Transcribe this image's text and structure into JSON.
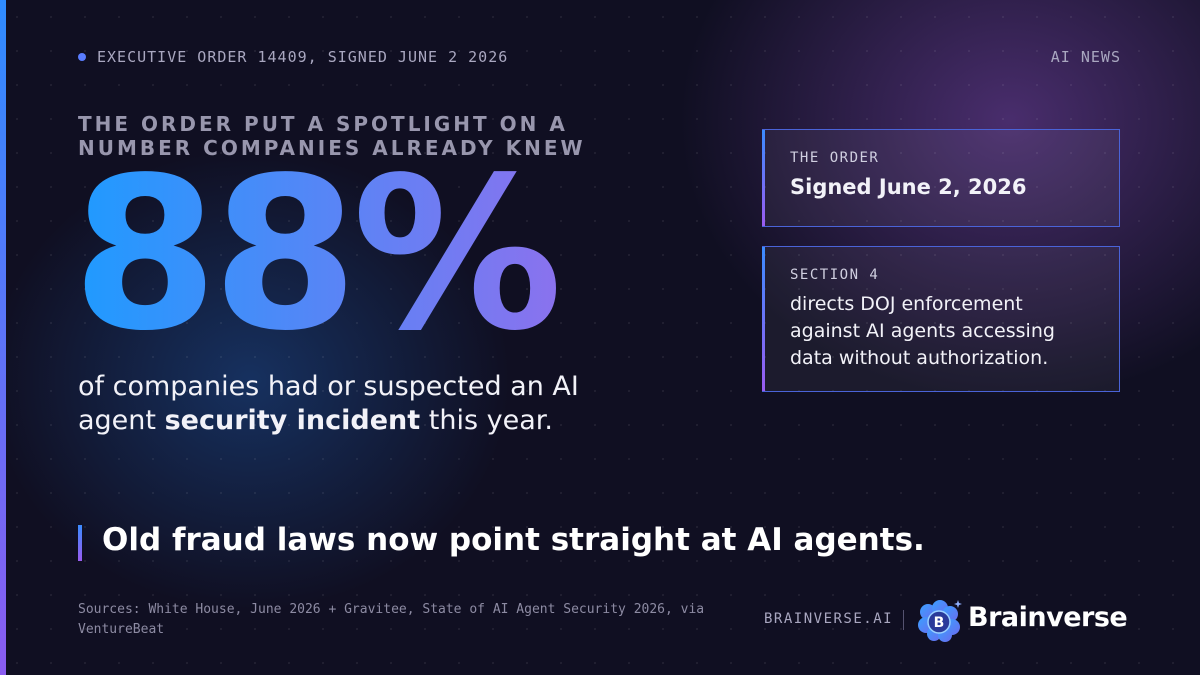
{
  "header": {
    "kicker": "EXECUTIVE ORDER 14409, SIGNED JUNE 2 2026",
    "tag": "AI NEWS"
  },
  "headline": {
    "lead": "THE ORDER PUT A SPOTLIGHT ON A NUMBER COMPANIES ALREADY KNEW"
  },
  "stat": {
    "value": "88%",
    "caption_before": "of companies had or suspected an AI agent ",
    "caption_bold": "security incident",
    "caption_after": " this year."
  },
  "cards": [
    {
      "label": "THE ORDER",
      "text": "Signed June 2, 2026"
    },
    {
      "label": "SECTION 4",
      "text": "directs DOJ enforcement against AI agents accessing data without authorization."
    }
  ],
  "takeaway": "Old fraud laws now point straight at AI agents.",
  "footer": {
    "sources": "Sources: White House, June 2026 + Gravitee, State of AI Agent Security 2026, via VentureBeat",
    "site": "BRAINVERSE.AI",
    "brand": "Brainverse"
  }
}
